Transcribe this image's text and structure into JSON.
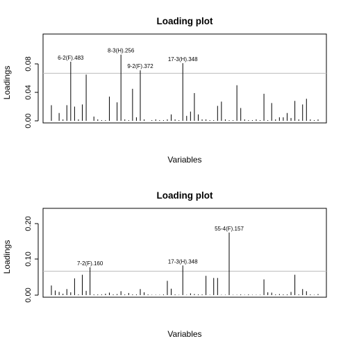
{
  "chart_data": [
    {
      "type": "bar",
      "title": "Loading plot",
      "xlabel": "Variables",
      "ylabel": "Loadings",
      "ylim": [
        0,
        0.1
      ],
      "yticks": [
        "0.00",
        "0.04",
        "0.08"
      ],
      "ytick_values": [
        0,
        0.04,
        0.08
      ],
      "reference_line": 0.07,
      "grid": false,
      "x_count": 70,
      "values": [
        0.022,
        0,
        0.011,
        0.002,
        0.022,
        0.083,
        0.02,
        0.002,
        0.023,
        0.065,
        0,
        0.006,
        0.002,
        0.001,
        0.001,
        0.034,
        0,
        0.026,
        0.093,
        0.002,
        0.001,
        0.045,
        0.005,
        0.071,
        0.002,
        0,
        0.001,
        0.002,
        0.001,
        0.001,
        0.002,
        0.009,
        0.002,
        0.001,
        0.081,
        0.007,
        0.013,
        0.039,
        0.009,
        0.002,
        0.002,
        0.001,
        0.001,
        0.021,
        0.027,
        0.002,
        0.001,
        0.001,
        0.05,
        0.018,
        0.002,
        0.001,
        0.001,
        0.002,
        0.001,
        0.038,
        0.001,
        0.025,
        0.002,
        0.005,
        0.005,
        0.011,
        0.004,
        0.028,
        0.002,
        0.023,
        0.031,
        0.002,
        0.001,
        0.002
      ],
      "annotations": [
        {
          "label": "6-2(F).483",
          "index": 5
        },
        {
          "label": "8-3(H).256",
          "index": 18
        },
        {
          "label": "9-2(F).372",
          "index": 23
        },
        {
          "label": "17-3(H).348",
          "index": 34
        }
      ]
    },
    {
      "type": "bar",
      "title": "Loading plot",
      "xlabel": "Variables",
      "ylabel": "Loadings",
      "ylim": [
        0,
        0.22
      ],
      "yticks": [
        "0.00",
        "0.10",
        "0.20"
      ],
      "ytick_values": [
        0,
        0.1,
        0.2
      ],
      "reference_line": 0.07,
      "grid": false,
      "x_count": 70,
      "values": [
        0.027,
        0.013,
        0.009,
        0.004,
        0.017,
        0.008,
        0.047,
        0.002,
        0.057,
        0.012,
        0.078,
        0.002,
        0.002,
        0.002,
        0.004,
        0.007,
        0.002,
        0.003,
        0.011,
        0.002,
        0.006,
        0.002,
        0.002,
        0.017,
        0.008,
        0.002,
        0.001,
        0.001,
        0.001,
        0.002,
        0.04,
        0.018,
        0.002,
        0.001,
        0.083,
        0.001,
        0.005,
        0.003,
        0.002,
        0.002,
        0.054,
        0.001,
        0.048,
        0.048,
        0.001,
        0.001,
        0.175,
        0.001,
        0.001,
        0.002,
        0.001,
        0.002,
        0.001,
        0.001,
        0.001,
        0.044,
        0.008,
        0.007,
        0.002,
        0.003,
        0.002,
        0.002,
        0.009,
        0.057,
        0.002,
        0.017,
        0.011,
        0.002,
        0.001,
        0.003
      ],
      "annotations": [
        {
          "label": "7-2(F).160",
          "index": 10
        },
        {
          "label": "17-3(H).348",
          "index": 34
        },
        {
          "label": "55-4(F).157",
          "index": 46
        }
      ]
    }
  ]
}
